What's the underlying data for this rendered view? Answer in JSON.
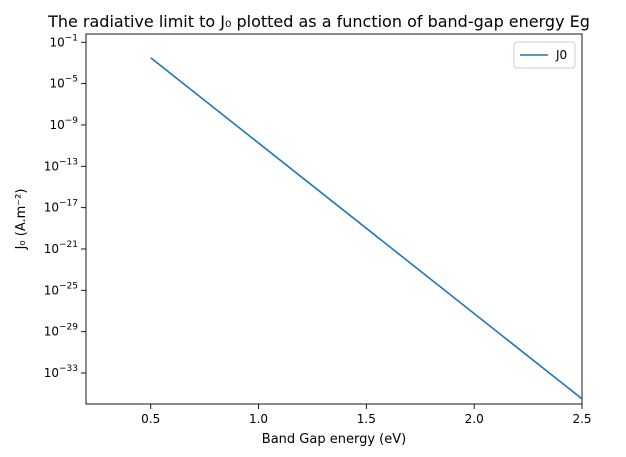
{
  "chart_data": {
    "type": "line",
    "title": "The radiative limit to J₀ plotted as a function of band-gap energy Eg",
    "xlabel": "Band Gap energy (eV)",
    "ylabel": "J₀ (A.m⁻²)",
    "xlim": [
      0.2,
      2.5
    ],
    "ylim_exponent": [
      -36,
      -0.2
    ],
    "yscale": "log",
    "x_ticks": [
      "0.5",
      "1.0",
      "1.5",
      "2.0",
      "2.5"
    ],
    "y_tick_base": "10",
    "y_tick_exponents": [
      "−1",
      "−5",
      "−9",
      "−13",
      "−17",
      "−21",
      "−25",
      "−29",
      "−33"
    ],
    "legend_position": "top-right",
    "grid": false,
    "series": [
      {
        "name": "J0",
        "color": "#1f77b4",
        "x": [
          0.5,
          2.5
        ],
        "y_exponent": [
          -2.5,
          -35.5
        ]
      }
    ]
  }
}
